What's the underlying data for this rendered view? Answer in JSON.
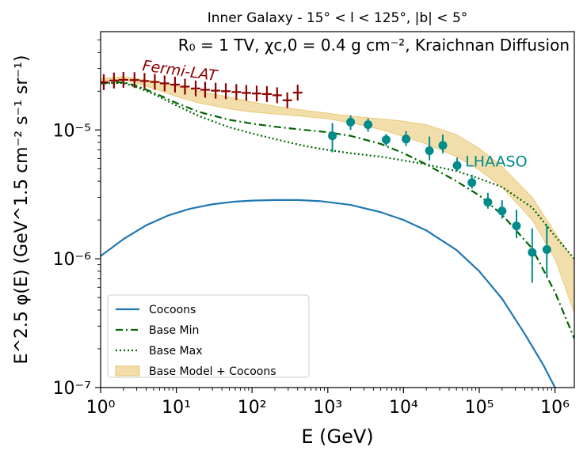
{
  "chart_data": {
    "type": "line",
    "title": "Inner Galaxy - 15° < l < 125°, |b| < 5°",
    "subtitle": "R₀ = 1 TV, χc,0 = 0.4 g cm⁻², Kraichnan Diffusion",
    "xlabel": "E (GeV)",
    "ylabel": "E^2.5 φ(E) (GeV^1.5 cm⁻² s⁻¹ sr⁻¹)",
    "xscale": "log",
    "yscale": "log",
    "xlim": [
      1,
      1800000
    ],
    "ylim": [
      1e-07,
      5.8e-05
    ],
    "x_ticks": [
      {
        "value": 1,
        "label": "10⁰"
      },
      {
        "value": 10,
        "label": "10¹"
      },
      {
        "value": 100,
        "label": "10²"
      },
      {
        "value": 1000,
        "label": "10³"
      },
      {
        "value": 10000,
        "label": "10⁴"
      },
      {
        "value": 100000,
        "label": "10⁵"
      },
      {
        "value": 1000000,
        "label": "10⁶"
      }
    ],
    "y_ticks": [
      {
        "value": 1e-07,
        "label": "10⁻⁷"
      },
      {
        "value": 1e-06,
        "label": "10⁻⁶"
      },
      {
        "value": 1e-05,
        "label": "10⁻⁵"
      }
    ],
    "annotations": [
      {
        "text": "Fermi-LAT",
        "color": "#8b0000",
        "x": 3.5,
        "y": 2.9e-05
      },
      {
        "text": "LHAASO",
        "color": "#008b8b",
        "x": 65000,
        "y": 5.2e-06
      }
    ],
    "series": [
      {
        "name": "Cocoons",
        "style": "solid",
        "color": "#1f77b4",
        "x": [
          1,
          2,
          4,
          8,
          15,
          30,
          60,
          100,
          200,
          400,
          800,
          2000,
          5000,
          10000,
          20000,
          50000,
          100000,
          200000,
          400000,
          700000,
          1000000
        ],
        "y": [
          1.05e-06,
          1.42e-06,
          1.82e-06,
          2.18e-06,
          2.44e-06,
          2.65e-06,
          2.78e-06,
          2.83e-06,
          2.86e-06,
          2.86e-06,
          2.8e-06,
          2.62e-06,
          2.3e-06,
          2e-06,
          1.66e-06,
          1.17e-06,
          8e-07,
          4.9e-07,
          2.6e-07,
          1.5e-07,
          1e-07
        ]
      },
      {
        "name": "Base Min",
        "style": "dashdot",
        "color": "#006400",
        "x": [
          1,
          2,
          3,
          5,
          10,
          20,
          50,
          100,
          200,
          500,
          1000,
          2000,
          5000,
          10000,
          20000,
          50000,
          100000,
          200000,
          500000,
          1000000,
          1800000
        ],
        "y": [
          2.3e-05,
          2.35e-05,
          2.2e-05,
          1.95e-05,
          1.62e-05,
          1.38e-05,
          1.2e-05,
          1.12e-05,
          1.06e-05,
          1e-05,
          9.6e-06,
          9e-06,
          7.8e-06,
          6.6e-06,
          5.4e-06,
          4e-06,
          3.1e-06,
          2.2e-06,
          1.2e-06,
          5.5e-07,
          2.4e-07
        ]
      },
      {
        "name": "Base Max",
        "style": "dotted",
        "color": "#006400",
        "x": [
          1,
          2,
          3,
          5,
          10,
          20,
          50,
          100,
          200,
          500,
          1000,
          2000,
          5000,
          10000,
          20000,
          50000,
          100000,
          200000,
          500000,
          1000000,
          1800000
        ],
        "y": [
          2.3e-05,
          2.32e-05,
          2.15e-05,
          1.9e-05,
          1.55e-05,
          1.28e-05,
          1.05e-05,
          9.4e-06,
          8.5e-06,
          7.5e-06,
          7e-06,
          6.6e-06,
          6.2e-06,
          5.8e-06,
          5.4e-06,
          4.8e-06,
          4.2e-06,
          3.6e-06,
          2.5e-06,
          1.5e-06,
          1e-06
        ]
      }
    ],
    "band": {
      "name": "Base Model + Cocoons",
      "color": "#e8c266",
      "x": [
        1,
        2,
        3,
        5,
        10,
        20,
        50,
        100,
        200,
        500,
        1000,
        2000,
        5000,
        10000,
        20000,
        50000,
        100000,
        200000,
        500000,
        1000000,
        1800000
      ],
      "lower": [
        2.4e-05,
        2.48e-05,
        2.3e-05,
        2.1e-05,
        1.82e-05,
        1.62e-05,
        1.46e-05,
        1.38e-05,
        1.33e-05,
        1.27e-05,
        1.22e-05,
        1.14e-05,
        1.01e-05,
        8.9e-06,
        7.8e-06,
        6.2e-06,
        4.9e-06,
        3.6e-06,
        2e-06,
        1e-06,
        3.8e-07
      ],
      "upper": [
        2.5e-05,
        2.6e-05,
        2.5e-05,
        2.4e-05,
        2.2e-05,
        2e-05,
        1.8e-05,
        1.65e-05,
        1.53e-05,
        1.42e-05,
        1.35e-05,
        1.28e-05,
        1.22e-05,
        1.17e-05,
        1.1e-05,
        9.2e-06,
        7.2e-06,
        5.2e-06,
        3e-06,
        1.6e-06,
        9.5e-07
      ]
    },
    "fermi_points": {
      "name": "Fermi-LAT",
      "color": "#8b0000",
      "x": [
        1.1,
        1.5,
        2.0,
        2.8,
        3.8,
        5.2,
        7.0,
        9.6,
        13,
        18,
        24,
        33,
        45,
        62,
        84,
        115,
        157,
        214,
        292,
        400
      ],
      "y": [
        2.35e-05,
        2.42e-05,
        2.45e-05,
        2.44e-05,
        2.4e-05,
        2.36e-05,
        2.3e-05,
        2.25e-05,
        2.17e-05,
        2.1e-05,
        2.05e-05,
        2.02e-05,
        2e-05,
        1.97e-05,
        1.94e-05,
        1.92e-05,
        1.9e-05,
        1.86e-05,
        1.7e-05,
        1.95e-05
      ]
    },
    "lhaaso_points": {
      "name": "LHAASO",
      "color": "#008b8b",
      "x": [
        1150,
        2000,
        3400,
        5900,
        10800,
        22000,
        33000,
        51000,
        80000,
        130000,
        200000,
        310000,
        500000,
        780000
      ],
      "y": [
        9e-06,
        1.15e-05,
        1.1e-05,
        8.4e-06,
        8.5e-06,
        6.9e-06,
        7.6e-06,
        5.3e-06,
        3.9e-06,
        2.75e-06,
        2.35e-06,
        1.8e-06,
        1.12e-06,
        1.18e-06
      ],
      "err_lo": [
        2.3e-06,
        1.5e-06,
        1.3e-06,
        9e-07,
        1e-06,
        1.1e-06,
        1e-06,
        5e-07,
        4e-07,
        3e-07,
        3e-07,
        3.5e-07,
        4.7e-07,
        4.5e-07
      ],
      "err_hi": [
        2.3e-06,
        1.5e-06,
        1.3e-06,
        9e-07,
        1.3e-06,
        2e-06,
        1.6e-06,
        8e-07,
        6e-07,
        5e-07,
        5e-07,
        6e-07,
        6e-07,
        6.5e-07
      ]
    },
    "legend": {
      "position": "lower-left",
      "entries": [
        {
          "label": "Cocoons",
          "marker": "solid",
          "color": "#1f77b4"
        },
        {
          "label": "Base Min",
          "marker": "dashdot",
          "color": "#006400"
        },
        {
          "label": "Base Max",
          "marker": "dotted",
          "color": "#006400"
        },
        {
          "label": "Base Model + Cocoons",
          "marker": "patch",
          "color": "#e8c266"
        }
      ]
    }
  }
}
